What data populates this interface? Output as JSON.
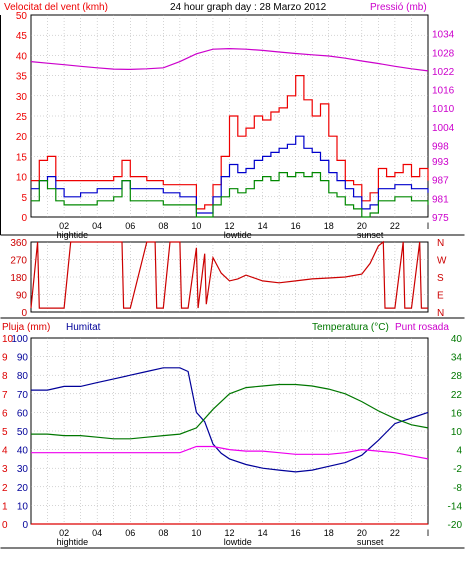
{
  "header": {
    "wind_title": "Velocitat del vent (kmh)",
    "main_title": "24 hour graph day : 28 Marzo 2012",
    "pressure_title": "Pressió (mb)",
    "rain_title": "Pluja (mm)",
    "humidity_title": "Humitat",
    "temperature_title": "Temperatura (°C)",
    "dewpoint_title": "Punt rosada"
  },
  "colors": {
    "wind_gust": "#ee0000",
    "wind_avg": "#0000cc",
    "wind_low": "#008800",
    "pressure": "#cc00cc",
    "direction": "#cc0000",
    "humidity": "#000099",
    "temperature": "#007700",
    "dewpoint": "#ee00ee",
    "rain": "#dd0000",
    "grid": "#aaaaaa",
    "frame": "#000000"
  },
  "chart_data": [
    {
      "type": "line",
      "panel": "wind",
      "title": "24 hour graph day : 28 Marzo 2012",
      "xlabel": "",
      "ylabel": "Velocitat del vent (kmh)",
      "y2label": "Pressió (mb)",
      "xlim": [
        0,
        24
      ],
      "ylim": [
        0,
        50
      ],
      "y2lim": [
        975,
        1040
      ],
      "x_tick_labels": [
        "02",
        "04",
        "06",
        "08",
        "10",
        "12",
        "14",
        "16",
        "18",
        "20",
        "22",
        "I"
      ],
      "x_event_labels": [
        {
          "x": 2.5,
          "label": "hightide"
        },
        {
          "x": 12.5,
          "label": "lowtide"
        },
        {
          "x": 20.5,
          "label": "sunset"
        }
      ],
      "y_ticks": [
        0,
        5,
        10,
        15,
        20,
        25,
        30,
        35,
        40,
        45,
        50
      ],
      "y2_ticks": [
        975,
        981,
        987,
        993,
        998,
        1004,
        1010,
        1016,
        1022,
        1028,
        1034
      ],
      "grid": true,
      "series": [
        {
          "role": "gust",
          "x": [
            0,
            0.5,
            1,
            1.5,
            2,
            3,
            4,
            5,
            5.5,
            6,
            7,
            8,
            9,
            10,
            10.5,
            11,
            11.5,
            12,
            12.5,
            13,
            13.5,
            14,
            14.5,
            15,
            15.5,
            16,
            16.5,
            17,
            17.5,
            18,
            18.5,
            19,
            19.5,
            20,
            20.5,
            21,
            21.5,
            22,
            22.5,
            23,
            23.5,
            24
          ],
          "values": [
            9,
            14,
            15,
            9,
            9,
            9,
            9,
            10,
            14,
            10,
            9,
            8,
            8,
            2,
            3,
            8,
            15,
            25,
            20,
            22,
            25,
            24,
            26,
            27,
            30,
            35,
            29,
            25,
            28,
            20,
            14,
            9,
            8,
            4,
            6,
            12,
            10,
            11,
            13,
            10,
            12,
            9
          ]
        },
        {
          "role": "avg",
          "x": [
            0,
            0.5,
            1,
            1.5,
            2,
            3,
            4,
            5,
            5.5,
            6,
            7,
            8,
            9,
            10,
            10.5,
            11,
            11.5,
            12,
            12.5,
            13,
            13.5,
            14,
            14.5,
            15,
            15.5,
            16,
            16.5,
            17,
            17.5,
            18,
            18.5,
            19,
            19.5,
            20,
            20.5,
            21,
            21.5,
            22,
            22.5,
            23,
            23.5,
            24
          ],
          "values": [
            7,
            9,
            10,
            7,
            5,
            6,
            7,
            7,
            9,
            7,
            7,
            6,
            5,
            1,
            1,
            5,
            10,
            13,
            11,
            12,
            14,
            15,
            16,
            17,
            18,
            20,
            17,
            16,
            14,
            11,
            9,
            7,
            5,
            2,
            3,
            7,
            7,
            8,
            8,
            7,
            7,
            6
          ]
        },
        {
          "role": "low",
          "x": [
            0,
            0.5,
            1,
            1.5,
            2,
            3,
            4,
            5,
            5.5,
            6,
            7,
            8,
            9,
            10,
            10.5,
            11,
            11.5,
            12,
            12.5,
            13,
            13.5,
            14,
            14.5,
            15,
            15.5,
            16,
            16.5,
            17,
            17.5,
            18,
            18.5,
            19,
            19.5,
            20,
            20.5,
            21,
            21.5,
            22,
            22.5,
            23,
            23.5,
            24
          ],
          "values": [
            4,
            9,
            7,
            4,
            3,
            3,
            4,
            5,
            9,
            4,
            4,
            3,
            3,
            0,
            0,
            3,
            5,
            7,
            6,
            7,
            9,
            10,
            9,
            11,
            10,
            11,
            10,
            11,
            9,
            6,
            5,
            3,
            2,
            0,
            1,
            4,
            4,
            5,
            5,
            4,
            4,
            3
          ]
        },
        {
          "role": "pressure",
          "x": [
            0,
            1,
            2,
            3,
            4,
            5,
            6,
            7,
            8,
            9,
            10,
            11,
            12,
            13,
            14,
            15,
            16,
            17,
            18,
            19,
            20,
            21,
            22,
            23,
            24
          ],
          "values": [
            1025,
            1024.5,
            1024,
            1023.5,
            1023,
            1022.6,
            1022.5,
            1022.7,
            1023,
            1025,
            1027.5,
            1029,
            1029.2,
            1029,
            1028.6,
            1028.1,
            1027.6,
            1027.2,
            1026.8,
            1026.1,
            1025.2,
            1024.4,
            1023.5,
            1022.7,
            1022
          ]
        }
      ]
    },
    {
      "type": "line",
      "panel": "direction",
      "xlim": [
        0,
        24
      ],
      "ylim": [
        0,
        360
      ],
      "y_ticks": [
        0,
        90,
        180,
        270,
        360
      ],
      "y_compass_labels": [
        "N",
        "E",
        "S",
        "W",
        "N"
      ],
      "grid": true,
      "series": [
        {
          "role": "direction",
          "x": [
            0,
            0.4,
            0.5,
            1,
            2,
            2.4,
            2.5,
            3,
            3.5,
            4,
            4.5,
            5,
            5.5,
            5.6,
            6,
            7,
            7.5,
            7.6,
            8,
            8.4,
            8.5,
            9,
            9.1,
            9.5,
            10,
            10.1,
            10.5,
            10.6,
            11,
            11.5,
            12,
            12.5,
            13,
            14,
            15,
            16,
            17,
            18,
            19,
            20,
            20.5,
            21,
            21.3,
            21.4,
            22,
            22.5,
            22.6,
            23,
            23.5,
            23.6,
            24
          ],
          "values": [
            20,
            360,
            20,
            20,
            20,
            360,
            360,
            360,
            360,
            360,
            360,
            360,
            360,
            20,
            20,
            360,
            360,
            20,
            20,
            360,
            360,
            360,
            20,
            20,
            330,
            20,
            300,
            40,
            280,
            200,
            160,
            170,
            190,
            160,
            150,
            160,
            170,
            175,
            180,
            195,
            250,
            340,
            360,
            20,
            20,
            360,
            20,
            20,
            360,
            20,
            20
          ]
        }
      ]
    },
    {
      "type": "line",
      "panel": "temperature",
      "xlim": [
        0,
        24
      ],
      "ylim": [
        0,
        100
      ],
      "y2lim": [
        -20,
        40
      ],
      "y_ticks": [
        0,
        10,
        20,
        30,
        40,
        50,
        60,
        70,
        80,
        90,
        100
      ],
      "y_tick_labels_rain": [
        "0",
        "1",
        "2",
        "3",
        "4",
        "5",
        "6",
        "7",
        "8",
        "9",
        "10"
      ],
      "y2_ticks": [
        -20,
        -14,
        -8,
        -2,
        4,
        10,
        16,
        22,
        28,
        34,
        40
      ],
      "grid": true,
      "series": [
        {
          "role": "humidity",
          "x": [
            0,
            1,
            2,
            3,
            4,
            5,
            6,
            7,
            8,
            9,
            9.5,
            10,
            10.5,
            11,
            11.5,
            12,
            13,
            14,
            15,
            16,
            17,
            18,
            19,
            20,
            21,
            22,
            23,
            24
          ],
          "values": [
            72,
            72,
            74,
            74,
            76,
            78,
            80,
            82,
            84,
            84,
            82,
            60,
            55,
            43,
            38,
            35,
            32,
            30,
            29,
            28,
            29,
            31,
            33,
            37,
            45,
            54,
            57,
            60
          ]
        },
        {
          "role": "temperature",
          "x": [
            0,
            1,
            2,
            3,
            4,
            5,
            6,
            7,
            8,
            9,
            10,
            11,
            12,
            13,
            14,
            15,
            16,
            17,
            18,
            19,
            20,
            21,
            22,
            23,
            24
          ],
          "values": [
            9,
            9,
            8.5,
            8.5,
            8,
            7.5,
            7.5,
            8,
            8.5,
            9,
            11,
            17,
            22,
            24,
            24.5,
            25,
            25,
            24.5,
            23.5,
            22,
            19.5,
            16.5,
            14,
            12,
            11
          ]
        },
        {
          "role": "dewpoint",
          "x": [
            0,
            1,
            2,
            3,
            4,
            5,
            6,
            7,
            8,
            9,
            10,
            11,
            12,
            13,
            14,
            15,
            16,
            17,
            18,
            19,
            20,
            21,
            22,
            23,
            24
          ],
          "values": [
            3,
            3,
            3,
            3,
            3,
            3,
            3,
            3,
            3,
            3,
            5,
            5,
            4,
            3.5,
            3.5,
            3,
            2.5,
            2.5,
            2.5,
            3,
            4,
            3.5,
            3,
            2,
            1
          ]
        },
        {
          "role": "rain",
          "x": [
            0,
            24
          ],
          "values": [
            0,
            0
          ]
        }
      ]
    }
  ]
}
